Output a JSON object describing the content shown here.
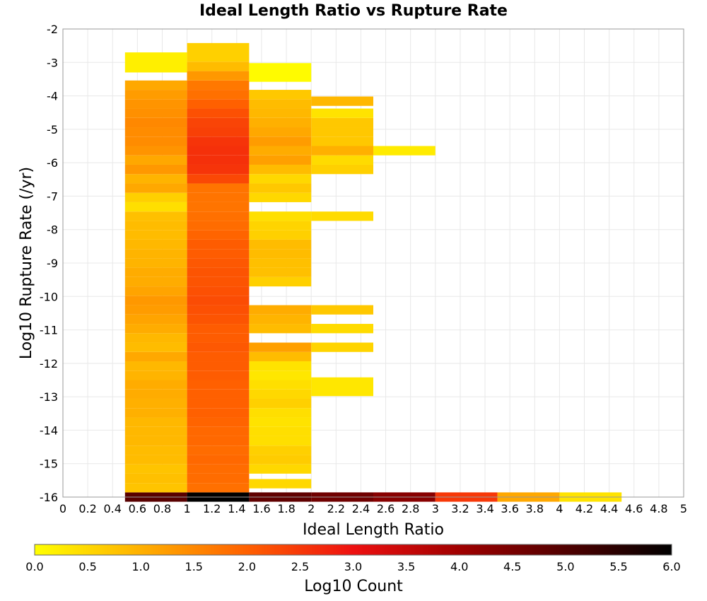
{
  "chart_data": {
    "type": "heatmap",
    "title": "Ideal Length Ratio vs Rupture Rate",
    "xlabel": "Ideal Length Ratio",
    "ylabel": "Log10 Rupture Rate (/yr)",
    "colorbar_label": "Log10 Count",
    "xlim": [
      0,
      5
    ],
    "ylim": [
      -16,
      -2
    ],
    "x_ticks": [
      "0",
      "0.2",
      "0.4",
      "0.6",
      "0.8",
      "1",
      "1.2",
      "1.4",
      "1.6",
      "1.8",
      "2",
      "2.2",
      "2.4",
      "2.6",
      "2.8",
      "3",
      "3.2",
      "3.4",
      "3.6",
      "3.8",
      "4",
      "4.2",
      "4.4",
      "4.6",
      "4.8",
      "5"
    ],
    "y_ticks": [
      "-2",
      "-3",
      "-4",
      "-5",
      "-6",
      "-7",
      "-8",
      "-9",
      "-10",
      "-11",
      "-12",
      "-13",
      "-14",
      "-15",
      "-16"
    ],
    "colorbar_ticks": [
      "0.0",
      "0.5",
      "1.0",
      "1.5",
      "2.0",
      "2.5",
      "3.0",
      "3.5",
      "4.0",
      "4.5",
      "5.0",
      "5.5",
      "6.0"
    ],
    "color_range": [
      0,
      6
    ],
    "colorscale": [
      "#ffff00",
      "#ffb000",
      "#ff6000",
      "#ee1010",
      "#a00000",
      "#500000",
      "#000000"
    ],
    "grid": true,
    "x_bin_width": 0.5,
    "y_bin_height": 0.28,
    "columns": [
      {
        "x": 0.75,
        "cells": [
          [
            -16.0,
            4.9
          ],
          [
            -15.72,
            0.75
          ],
          [
            -15.44,
            0.8
          ],
          [
            -15.16,
            0.75
          ],
          [
            -14.88,
            0.85
          ],
          [
            -14.6,
            0.85
          ],
          [
            -14.32,
            0.9
          ],
          [
            -14.04,
            0.9
          ],
          [
            -13.76,
            0.9
          ],
          [
            -13.48,
            1.0
          ],
          [
            -13.2,
            1.0
          ],
          [
            -12.92,
            1.05
          ],
          [
            -12.64,
            1.05
          ],
          [
            -12.36,
            0.95
          ],
          [
            -12.08,
            0.9
          ],
          [
            -11.8,
            1.1
          ],
          [
            -11.52,
            0.85
          ],
          [
            -11.24,
            0.9
          ],
          [
            -10.96,
            1.05
          ],
          [
            -10.68,
            1.15
          ],
          [
            -10.4,
            1.25
          ],
          [
            -10.12,
            1.3
          ],
          [
            -9.84,
            1.15
          ],
          [
            -9.56,
            1.05
          ],
          [
            -9.28,
            1.05
          ],
          [
            -9.0,
            0.95
          ],
          [
            -8.72,
            0.95
          ],
          [
            -8.44,
            0.9
          ],
          [
            -8.16,
            0.85
          ],
          [
            -7.88,
            0.85
          ],
          [
            -7.6,
            0.8
          ],
          [
            -7.32,
            0.4
          ],
          [
            -7.04,
            0.6
          ],
          [
            -6.76,
            1.1
          ],
          [
            -6.48,
            0.95
          ],
          [
            -6.2,
            1.3
          ],
          [
            -5.92,
            1.1
          ],
          [
            -5.64,
            1.35
          ],
          [
            -5.36,
            1.45
          ],
          [
            -5.08,
            1.45
          ],
          [
            -4.8,
            1.5
          ],
          [
            -4.52,
            1.4
          ],
          [
            -4.24,
            1.35
          ],
          [
            -3.96,
            1.25
          ],
          [
            -3.68,
            1.1
          ],
          [
            -3.0,
            0.2,
            0.6
          ]
        ]
      },
      {
        "x": 1.25,
        "cells": [
          [
            -16.0,
            6.0
          ],
          [
            -15.72,
            1.8
          ],
          [
            -15.44,
            1.85
          ],
          [
            -15.16,
            1.85
          ],
          [
            -14.88,
            1.9
          ],
          [
            -14.6,
            1.85
          ],
          [
            -14.32,
            1.9
          ],
          [
            -14.04,
            1.9
          ],
          [
            -13.76,
            1.95
          ],
          [
            -13.48,
            2.0
          ],
          [
            -13.2,
            2.0
          ],
          [
            -12.92,
            2.0
          ],
          [
            -12.64,
            2.0
          ],
          [
            -12.36,
            2.05
          ],
          [
            -12.08,
            2.05
          ],
          [
            -11.8,
            2.05
          ],
          [
            -11.52,
            2.1
          ],
          [
            -11.24,
            2.05
          ],
          [
            -10.96,
            2.05
          ],
          [
            -10.68,
            2.15
          ],
          [
            -10.4,
            2.2
          ],
          [
            -10.12,
            2.25
          ],
          [
            -9.84,
            2.2
          ],
          [
            -9.56,
            2.15
          ],
          [
            -9.28,
            2.15
          ],
          [
            -9.0,
            2.1
          ],
          [
            -8.72,
            2.05
          ],
          [
            -8.44,
            2.05
          ],
          [
            -8.16,
            1.95
          ],
          [
            -7.88,
            1.85
          ],
          [
            -7.6,
            1.8
          ],
          [
            -7.32,
            1.75
          ],
          [
            -7.04,
            1.75
          ],
          [
            -6.76,
            1.75
          ],
          [
            -6.48,
            2.3
          ],
          [
            -6.2,
            2.55
          ],
          [
            -5.92,
            2.6
          ],
          [
            -5.64,
            2.6
          ],
          [
            -5.36,
            2.55
          ],
          [
            -5.08,
            2.4
          ],
          [
            -4.8,
            2.35
          ],
          [
            -4.52,
            2.2
          ],
          [
            -4.24,
            2.0
          ],
          [
            -3.96,
            1.8
          ],
          [
            -3.68,
            1.7
          ],
          [
            -3.4,
            1.3
          ],
          [
            -3.12,
            0.85
          ],
          [
            -2.7,
            0.6,
            0.56
          ]
        ]
      },
      {
        "x": 1.75,
        "cells": [
          [
            -16.0,
            4.8
          ],
          [
            -15.6,
            0.5
          ],
          [
            -15.16,
            0.5
          ],
          [
            -14.88,
            0.65
          ],
          [
            -14.6,
            0.6
          ],
          [
            -14.32,
            0.4
          ],
          [
            -14.04,
            0.4
          ],
          [
            -13.76,
            0.35
          ],
          [
            -13.48,
            0.4
          ],
          [
            -13.2,
            0.6
          ],
          [
            -12.92,
            0.5
          ],
          [
            -12.64,
            0.4
          ],
          [
            -12.36,
            0.3
          ],
          [
            -12.08,
            0.35
          ],
          [
            -11.8,
            0.85
          ],
          [
            -11.52,
            1.2
          ],
          [
            -10.96,
            0.85
          ],
          [
            -10.68,
            0.95
          ],
          [
            -10.4,
            1.05
          ],
          [
            -9.56,
            0.6
          ],
          [
            -9.28,
            0.8
          ],
          [
            -9.0,
            0.8
          ],
          [
            -8.72,
            0.85
          ],
          [
            -8.44,
            0.85
          ],
          [
            -8.16,
            0.6
          ],
          [
            -7.88,
            0.55
          ],
          [
            -7.6,
            0.4
          ],
          [
            -7.04,
            0.5
          ],
          [
            -6.76,
            0.7
          ],
          [
            -6.48,
            0.5
          ],
          [
            -6.2,
            0.85
          ],
          [
            -5.92,
            1.2
          ],
          [
            -5.64,
            1.05
          ],
          [
            -5.36,
            1.25
          ],
          [
            -5.08,
            1.1
          ],
          [
            -4.8,
            1.0
          ],
          [
            -4.52,
            0.9
          ],
          [
            -4.24,
            0.85
          ],
          [
            -3.96,
            0.7
          ],
          [
            -3.3,
            0.05,
            0.56
          ]
        ]
      },
      {
        "x": 2.25,
        "cells": [
          [
            -16.0,
            4.6
          ],
          [
            -12.7,
            0.3,
            0.56
          ],
          [
            -11.52,
            0.55
          ],
          [
            -10.96,
            0.45
          ],
          [
            -10.4,
            0.7
          ],
          [
            -7.6,
            0.45
          ],
          [
            -6.2,
            0.6
          ],
          [
            -5.92,
            0.45
          ],
          [
            -5.64,
            1.0
          ],
          [
            -5.36,
            0.7
          ],
          [
            -5.08,
            0.7
          ],
          [
            -4.8,
            0.7
          ],
          [
            -4.52,
            0.35
          ],
          [
            -4.16,
            0.9
          ]
        ]
      },
      {
        "x": 2.75,
        "cells": [
          [
            -16.0,
            4.3
          ],
          [
            -5.64,
            0.25
          ]
        ]
      },
      {
        "x": 3.25,
        "cells": [
          [
            -16.0,
            2.5
          ]
        ]
      },
      {
        "x": 3.75,
        "cells": [
          [
            -16.0,
            1.1
          ]
        ]
      },
      {
        "x": 4.25,
        "cells": [
          [
            -16.0,
            0.35
          ]
        ]
      }
    ]
  }
}
